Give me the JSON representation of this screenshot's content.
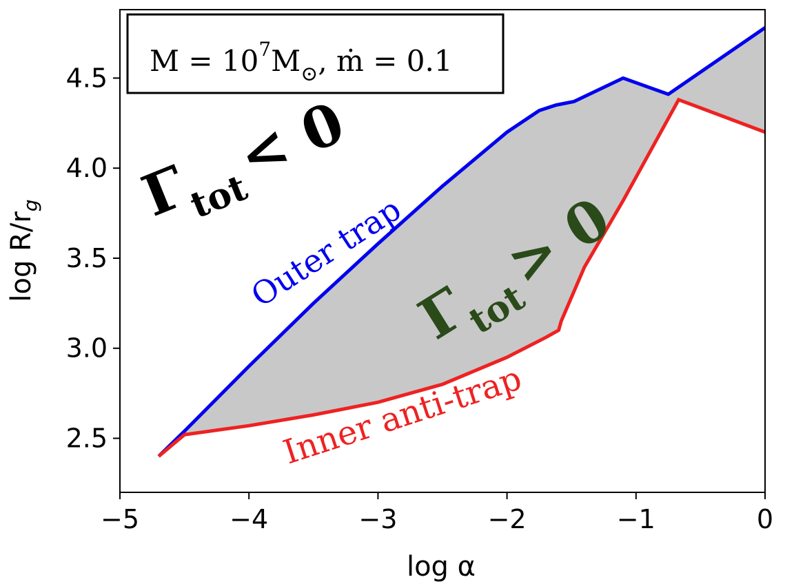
{
  "chart_data": {
    "type": "area",
    "title": "",
    "xlabel": "log α",
    "ylabel": "log R/r",
    "ylabel_subscript": "g",
    "xlim": [
      -5,
      0
    ],
    "ylim": [
      2.2,
      4.88
    ],
    "xticks": [
      -5,
      -4,
      -3,
      -2,
      -1,
      0
    ],
    "xtick_labels": [
      "−5",
      "−4",
      "−3",
      "−2",
      "−1",
      "0"
    ],
    "yticks": [
      2.5,
      3.0,
      3.5,
      4.0,
      4.5
    ],
    "ytick_labels": [
      "2.5",
      "3.0",
      "3.5",
      "4.0",
      "4.5"
    ],
    "grid": false,
    "legend_box": {
      "m_label": "M = 10",
      "m_exp": "7",
      "m_unit": "M",
      "m_sun": "⊙",
      "mdot_label": ", ṁ = 0.1"
    },
    "series": [
      {
        "name": "Outer trap",
        "color": "#0000ee",
        "x": [
          -4.7,
          -4.5,
          -4.0,
          -3.5,
          -3.0,
          -2.5,
          -2.0,
          -1.75,
          -1.62,
          -1.55,
          -1.48,
          -1.1,
          -0.75,
          0.0
        ],
        "y": [
          2.4,
          2.54,
          2.9,
          3.25,
          3.58,
          3.9,
          4.2,
          4.32,
          4.35,
          4.36,
          4.37,
          4.5,
          4.41,
          4.78
        ]
      },
      {
        "name": "Inner anti-trap",
        "color": "#ee2222",
        "x": [
          -4.7,
          -4.5,
          -4.0,
          -3.5,
          -3.0,
          -2.5,
          -2.0,
          -1.7,
          -1.6,
          -1.58,
          -1.4,
          -1.1,
          -0.67,
          0.0
        ],
        "y": [
          2.4,
          2.52,
          2.57,
          2.63,
          2.7,
          2.8,
          2.95,
          3.06,
          3.1,
          3.15,
          3.45,
          3.82,
          4.38,
          4.2
        ]
      }
    ],
    "fill_between": {
      "color": "#c8c8c8"
    },
    "annotations": {
      "neg_gamma": "Γ",
      "neg_sub": "tot",
      "neg_rel": "< 0",
      "pos_gamma": "Γ",
      "pos_sub": "tot",
      "pos_rel": "> 0",
      "outer_label": "Outer trap",
      "inner_label": "Inner anti-trap"
    },
    "colors": {
      "positive_region_text": "#2a4a1a",
      "negative_region_text": "#000000"
    }
  }
}
